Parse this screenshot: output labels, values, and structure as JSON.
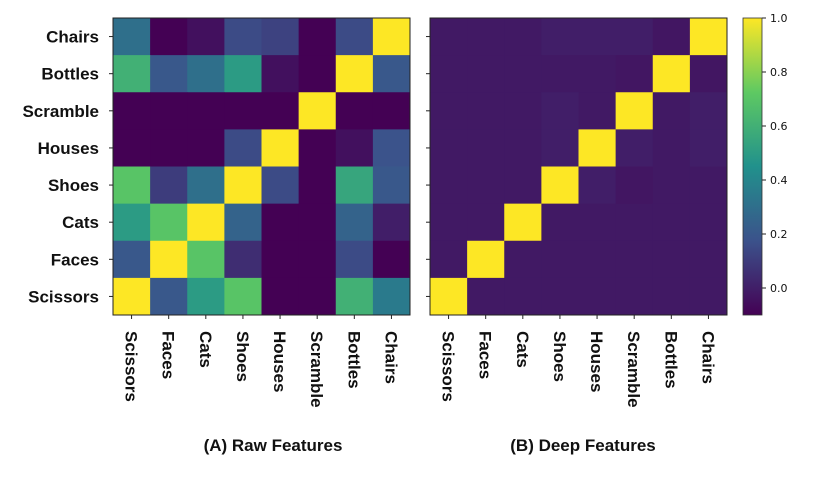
{
  "chart_data": [
    {
      "type": "heatmap",
      "title": "(A) Raw Features",
      "x_labels": [
        "Scissors",
        "Faces",
        "Cats",
        "Shoes",
        "Houses",
        "Scramble",
        "Bottles",
        "Chairs"
      ],
      "y_labels": [
        "Chairs",
        "Bottles",
        "Scramble",
        "Houses",
        "Shoes",
        "Cats",
        "Faces",
        "Scissors"
      ],
      "values": [
        [
          0.3,
          -0.1,
          -0.05,
          0.15,
          0.12,
          -0.1,
          0.15,
          1.0
        ],
        [
          0.6,
          0.2,
          0.3,
          0.5,
          -0.05,
          -0.1,
          1.0,
          0.2
        ],
        [
          -0.1,
          -0.1,
          -0.1,
          -0.1,
          -0.1,
          1.0,
          -0.1,
          -0.1
        ],
        [
          -0.1,
          -0.1,
          -0.1,
          0.15,
          1.0,
          -0.1,
          -0.05,
          0.18
        ],
        [
          0.7,
          0.1,
          0.3,
          1.0,
          0.15,
          -0.1,
          0.55,
          0.2
        ],
        [
          0.5,
          0.7,
          1.0,
          0.25,
          -0.1,
          -0.1,
          0.25,
          0.0
        ],
        [
          0.2,
          1.0,
          0.7,
          0.05,
          -0.1,
          -0.1,
          0.15,
          -0.1
        ],
        [
          1.0,
          0.2,
          0.5,
          0.7,
          -0.1,
          -0.1,
          0.6,
          0.35
        ]
      ]
    },
    {
      "type": "heatmap",
      "title": "(B) Deep Features",
      "x_labels": [
        "Scissors",
        "Faces",
        "Cats",
        "Shoes",
        "Houses",
        "Scramble",
        "Bottles",
        "Chairs"
      ],
      "y_labels": [
        "Chairs",
        "Bottles",
        "Scramble",
        "Houses",
        "Shoes",
        "Cats",
        "Faces",
        "Scissors"
      ],
      "values": [
        [
          -0.02,
          -0.02,
          -0.02,
          0.0,
          0.0,
          0.0,
          -0.03,
          1.0
        ],
        [
          -0.02,
          -0.02,
          -0.02,
          -0.02,
          -0.02,
          -0.03,
          1.0,
          -0.03
        ],
        [
          -0.02,
          -0.02,
          -0.02,
          0.0,
          -0.02,
          1.0,
          -0.02,
          0.0
        ],
        [
          -0.02,
          -0.02,
          -0.02,
          0.0,
          1.0,
          0.0,
          -0.02,
          0.0
        ],
        [
          -0.02,
          -0.02,
          -0.02,
          1.0,
          0.0,
          -0.03,
          -0.02,
          -0.02
        ],
        [
          -0.02,
          -0.02,
          1.0,
          -0.02,
          -0.02,
          -0.02,
          -0.02,
          -0.02
        ],
        [
          -0.02,
          1.0,
          -0.02,
          -0.02,
          -0.02,
          -0.02,
          -0.02,
          -0.02
        ],
        [
          1.0,
          -0.02,
          -0.02,
          -0.02,
          -0.02,
          -0.02,
          -0.02,
          -0.02
        ]
      ]
    }
  ],
  "colorbar": {
    "colormap": "viridis",
    "range": [
      -0.1,
      1.0
    ],
    "ticks": [
      "1.0",
      "0.8",
      "0.6",
      "0.4",
      "0.2",
      "0.0"
    ],
    "tick_values": [
      1.0,
      0.8,
      0.6,
      0.4,
      0.2,
      0.0
    ]
  }
}
